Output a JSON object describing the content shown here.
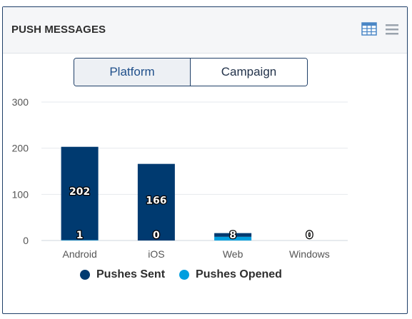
{
  "header": {
    "title": "PUSH MESSAGES",
    "table_icon": "table-view-icon",
    "menu_icon": "hamburger-menu-icon"
  },
  "toggle": {
    "options": [
      "Platform",
      "Campaign"
    ],
    "selected": "Platform"
  },
  "colors": {
    "sent": "#003a70",
    "opened": "#009fdf",
    "axis": "#cfd6de",
    "grid": "#e6e9ed",
    "text": "#555555"
  },
  "chart_data": {
    "type": "bar",
    "categories": [
      "Android",
      "iOS",
      "Web",
      "Windows"
    ],
    "series": [
      {
        "name": "Pushes Sent",
        "values": [
          202,
          166,
          8,
          0
        ]
      },
      {
        "name": "Pushes Opened",
        "values": [
          1,
          0,
          8,
          0
        ]
      }
    ],
    "yticks": [
      0,
      100,
      200,
      300
    ],
    "ylim": [
      0,
      300
    ],
    "grid": true,
    "stacked": true,
    "legend_position": "bottom"
  }
}
